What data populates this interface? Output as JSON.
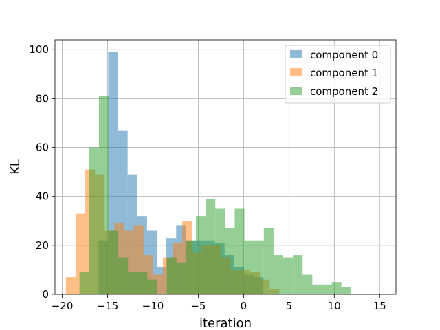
{
  "chart_data": {
    "type": "histogram",
    "xlabel": "iteration",
    "ylabel": "KL",
    "xlim": [
      -20.8,
      16.8
    ],
    "ylim": [
      0,
      104
    ],
    "xticks": [
      -20,
      -15,
      -10,
      -5,
      0,
      5,
      10,
      15
    ],
    "yticks": [
      0,
      20,
      40,
      60,
      80,
      100
    ],
    "grid": true,
    "legend_position": "top-right",
    "bin_width": 1.07,
    "series": [
      {
        "name": "component 0",
        "color": "#1f77b4",
        "opacity": 0.5,
        "bin_start": -16.0,
        "counts": [
          22,
          99,
          67,
          49,
          32,
          26,
          11,
          23,
          28,
          22,
          22,
          22,
          21,
          16,
          11,
          8,
          7,
          0,
          0,
          0,
          0,
          0,
          0,
          0,
          0,
          0,
          0,
          0,
          0,
          0,
          0
        ]
      },
      {
        "name": "component 1",
        "color": "#ff7f0e",
        "opacity": 0.5,
        "bin_start": -19.6,
        "counts": [
          7,
          33,
          51,
          49,
          26,
          29,
          26,
          28,
          16,
          8,
          15,
          21,
          30,
          17,
          20,
          20,
          15,
          10,
          10,
          9,
          6,
          2,
          0
        ]
      },
      {
        "name": "component 2",
        "color": "#2ca02c",
        "opacity": 0.5,
        "bin_start": -18.1,
        "counts": [
          9,
          60,
          81,
          26,
          15,
          9,
          9,
          6,
          0,
          15,
          13,
          22,
          32,
          39,
          35,
          27,
          35,
          22,
          22,
          27,
          16,
          15,
          16,
          8,
          4,
          4,
          5,
          3
        ]
      }
    ]
  }
}
